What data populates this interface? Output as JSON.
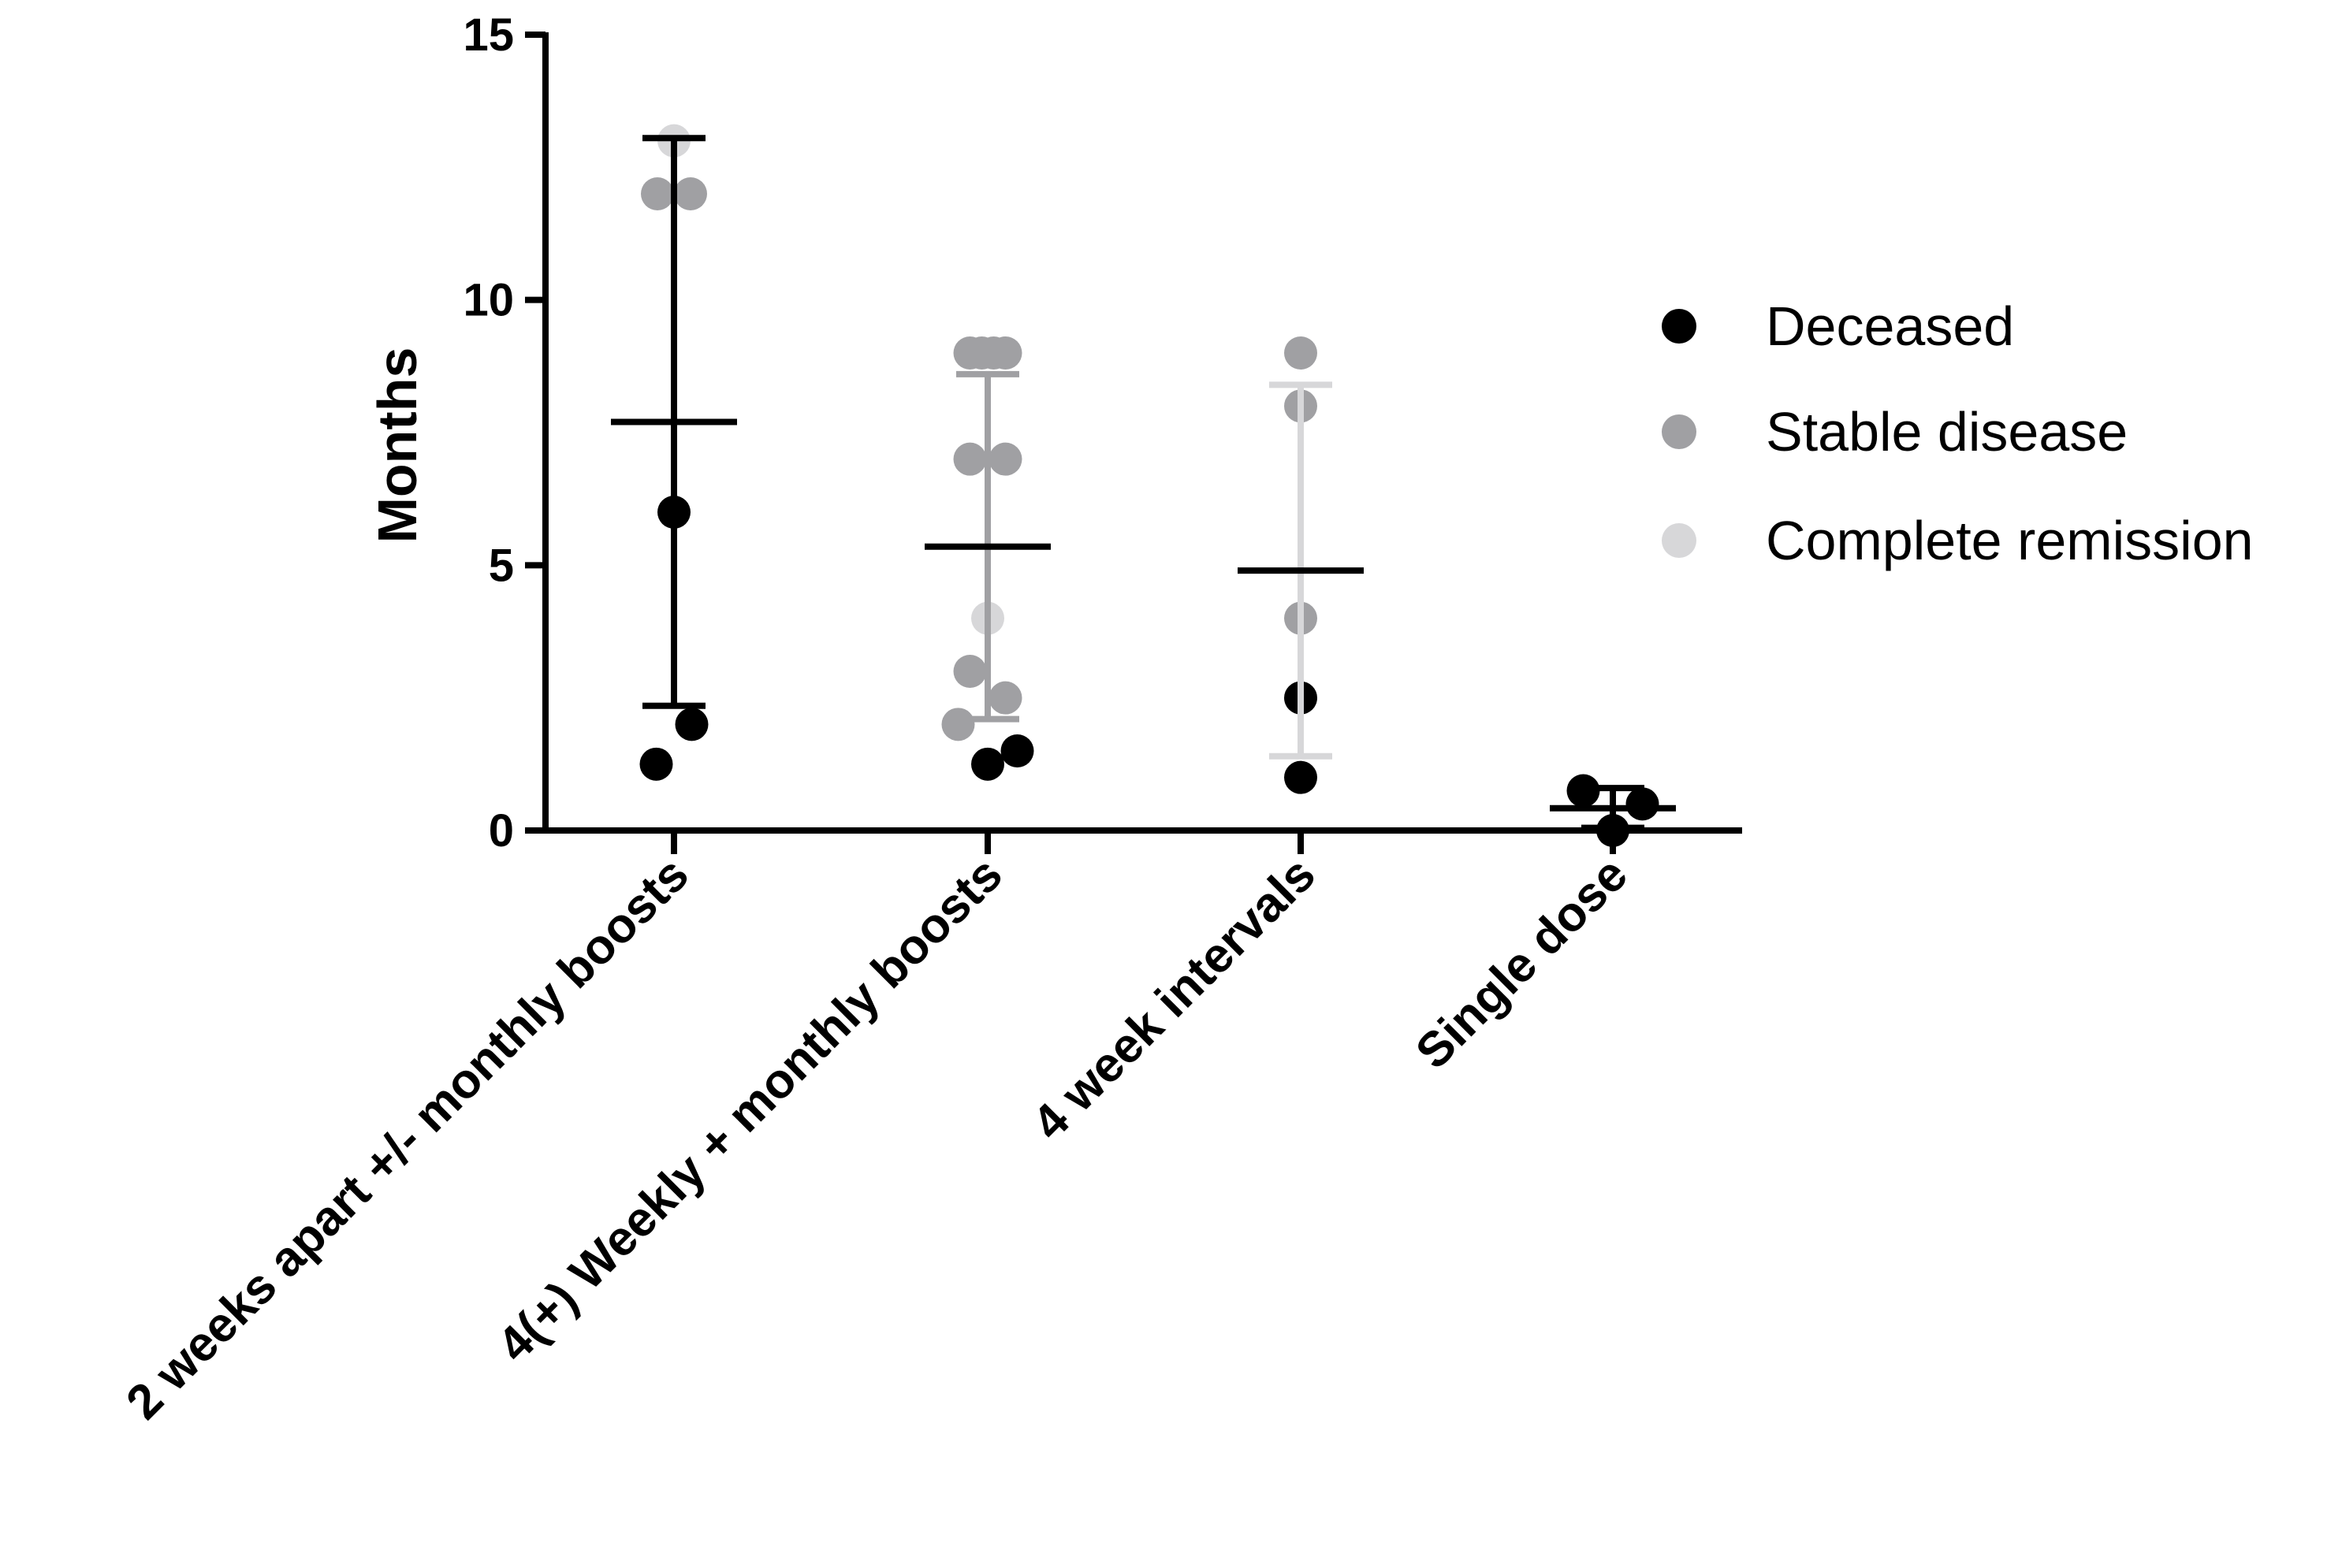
{
  "chart_data": {
    "type": "scatter",
    "title": "",
    "xlabel": "",
    "ylabel": "Months",
    "ylim": [
      0,
      15
    ],
    "yticks": [
      {
        "value": 0,
        "label": "0"
      },
      {
        "value": 5,
        "label": "5"
      },
      {
        "value": 10,
        "label": "10"
      },
      {
        "value": 15,
        "label": "15"
      }
    ],
    "categories": [
      "2 weeks apart +/- monthly boosts",
      "4(+) Weekly + monthly boosts",
      "4 week intervals",
      "Single dose"
    ],
    "legend": [
      {
        "name": "Deceased",
        "color": "#000000"
      },
      {
        "name": "Stable disease",
        "color": "#a0a0a3"
      },
      {
        "name": "Complete remission",
        "color": "#d7d7d9"
      }
    ],
    "groups": [
      {
        "category": "2 weeks apart +/- monthly boosts",
        "mean": 7.7,
        "sd_low": 2.35,
        "sd_high": 13.05,
        "bar_color": "#000000",
        "points": [
          {
            "value": 13,
            "status": "Complete remission",
            "offset": 0
          },
          {
            "value": 12,
            "status": "Stable disease",
            "offset": -0.7
          },
          {
            "value": 12,
            "status": "Stable disease",
            "offset": 0.7
          },
          {
            "value": 6,
            "status": "Deceased",
            "offset": 0
          },
          {
            "value": 2,
            "status": "Deceased",
            "offset": 0.75
          },
          {
            "value": 1.25,
            "status": "Deceased",
            "offset": -0.75
          }
        ]
      },
      {
        "category": "4(+) Weekly + monthly boosts",
        "mean": 5.35,
        "sd_low": 2.1,
        "sd_high": 8.6,
        "bar_color": "#a0a0a3",
        "points": [
          {
            "value": 9,
            "status": "Stable disease",
            "offset": -0.75
          },
          {
            "value": 9,
            "status": "Stable disease",
            "offset": -0.25
          },
          {
            "value": 9,
            "status": "Stable disease",
            "offset": 0.25
          },
          {
            "value": 9,
            "status": "Stable disease",
            "offset": 0.75
          },
          {
            "value": 7,
            "status": "Stable disease",
            "offset": -0.75
          },
          {
            "value": 7,
            "status": "Stable disease",
            "offset": 0.75
          },
          {
            "value": 4,
            "status": "Complete remission",
            "offset": 0
          },
          {
            "value": 3,
            "status": "Stable disease",
            "offset": -0.75
          },
          {
            "value": 2.5,
            "status": "Stable disease",
            "offset": 0.75
          },
          {
            "value": 2,
            "status": "Stable disease",
            "offset": -1.25
          },
          {
            "value": 1.5,
            "status": "Deceased",
            "offset": 1.25
          },
          {
            "value": 1.25,
            "status": "Deceased",
            "offset": 0
          }
        ]
      },
      {
        "category": "4 week intervals",
        "mean": 4.9,
        "sd_low": 1.4,
        "sd_high": 8.4,
        "bar_color": "#d7d7d9",
        "points": [
          {
            "value": 9,
            "status": "Stable disease",
            "offset": 0
          },
          {
            "value": 8,
            "status": "Stable disease",
            "offset": 0
          },
          {
            "value": 4,
            "status": "Stable disease",
            "offset": 0
          },
          {
            "value": 2.5,
            "status": "Deceased",
            "offset": 0
          },
          {
            "value": 1,
            "status": "Deceased",
            "offset": 0
          }
        ]
      },
      {
        "category": "Single dose",
        "mean": 0.42,
        "sd_low": 0.05,
        "sd_high": 0.8,
        "bar_color": "#000000",
        "points": [
          {
            "value": 0.75,
            "status": "Deceased",
            "offset": -1.25
          },
          {
            "value": 0.5,
            "status": "Deceased",
            "offset": 1.25
          },
          {
            "value": 0,
            "status": "Deceased",
            "offset": 0
          }
        ]
      }
    ]
  }
}
